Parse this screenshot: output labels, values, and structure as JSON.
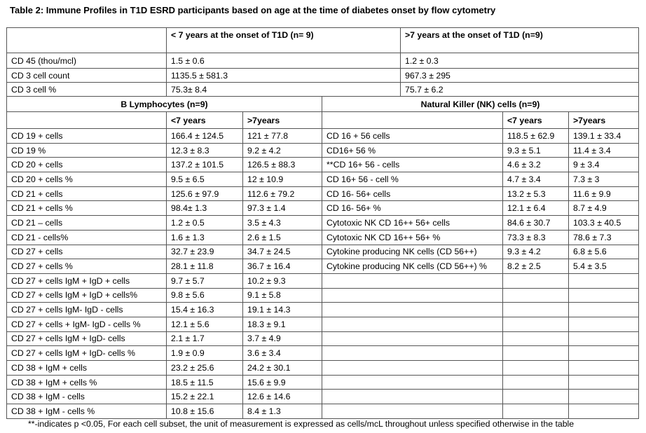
{
  "title": "Table 2: Immune Profiles in T1D ESRD participants based on age at the time of diabetes onset by flow cytometry",
  "overall": {
    "columns": [
      "< 7 years at the onset of T1D (n= 9)",
      ">7 years at the onset of T1D (n=9)"
    ],
    "rows": [
      [
        "CD 45 (thou/mcl)",
        "1.5 ± 0.6",
        "1.2 ± 0.3"
      ],
      [
        "CD 3 cell count",
        "1135.5 ± 581.3",
        "967.3 ± 295"
      ],
      [
        "CD 3 cell %",
        "75.3± 8.4",
        "75.7 ± 6.2"
      ]
    ]
  },
  "b_lymphocytes": {
    "title": "B Lymphocytes (n=9)",
    "columns": [
      "<7 years",
      ">7years"
    ],
    "rows": [
      [
        "CD 19 + cells",
        "166.4 ± 124.5",
        "121 ± 77.8"
      ],
      [
        "CD 19 %",
        "12.3 ± 8.3",
        "9.2 ± 4.2"
      ],
      [
        "CD 20 + cells",
        "137.2 ± 101.5",
        "126.5 ± 88.3"
      ],
      [
        "CD 20 + cells %",
        "9.5 ± 6.5",
        "12 ± 10.9"
      ],
      [
        "CD 21 + cells",
        "125.6 ± 97.9",
        "112.6 ± 79.2"
      ],
      [
        "CD 21 + cells %",
        "98.4± 1.3",
        "97.3 ± 1.4"
      ],
      [
        "CD 21 – cells",
        "1.2 ± 0.5",
        "3.5 ± 4.3"
      ],
      [
        "CD 21 - cells%",
        "1.6 ± 1.3",
        "2.6 ± 1.5"
      ],
      [
        "CD 27 + cells",
        "32.7 ± 23.9",
        "34.7 ± 24.5"
      ],
      [
        "CD 27 + cells %",
        "28.1 ± 11.8",
        "36.7 ± 16.4"
      ],
      [
        "CD 27 + cells IgM + IgD + cells",
        "9.7 ± 5.7",
        "10.2 ± 9.3"
      ],
      [
        "CD 27 + cells IgM + IgD + cells%",
        "9.8 ± 5.6",
        "9.1 ± 5.8"
      ],
      [
        "CD 27 + cells IgM- IgD - cells",
        "15.4 ± 16.3",
        "19.1 ± 14.3"
      ],
      [
        "CD 27 + cells + IgM- IgD - cells %",
        "12.1 ± 5.6",
        "18.3 ± 9.1"
      ],
      [
        "CD 27 + cells IgM + IgD- cells",
        "2.1 ± 1.7",
        "3.7 ± 4.9"
      ],
      [
        "CD 27 + cells IgM + IgD- cells %",
        "1.9 ± 0.9",
        "3.6 ± 3.4"
      ],
      [
        "CD 38 + IgM + cells",
        "23.2 ± 25.6",
        "24.2 ± 30.1"
      ],
      [
        "CD 38 + IgM + cells %",
        "18.5 ± 11.5",
        "15.6 ± 9.9"
      ],
      [
        "CD 38 + IgM - cells",
        "15.2 ± 22.1",
        "12.6 ± 14.6"
      ],
      [
        "CD 38 + IgM - cells %",
        "10.8 ± 15.6",
        "8.4 ± 1.3"
      ]
    ]
  },
  "nk_cells": {
    "title": "Natural Killer (NK) cells (n=9)",
    "columns": [
      "<7 years",
      ">7years"
    ],
    "rows": [
      [
        "CD 16 + 56 cells",
        "118.5 ± 62.9",
        "139.1 ± 33.4"
      ],
      [
        "CD16+ 56 %",
        "9.3 ± 5.1",
        "11.4 ± 3.4"
      ],
      [
        "**CD 16+ 56 - cells",
        "4.6 ± 3.2",
        "9 ± 3.4"
      ],
      [
        "CD 16+ 56 - cell %",
        "4.7 ± 3.4",
        "7.3 ± 3"
      ],
      [
        "CD 16- 56+ cells",
        "13.2 ± 5.3",
        "11.6 ± 9.9"
      ],
      [
        "CD 16- 56+ %",
        "12.1 ± 6.4",
        "8.7 ± 4.9"
      ],
      [
        "Cytotoxic NK CD 16++ 56+ cells",
        "84.6 ± 30.7",
        "103.3 ± 40.5"
      ],
      [
        "Cytotoxic NK CD 16++ 56+ %",
        "73.3 ± 8.3",
        "78.6 ± 7.3"
      ],
      [
        "Cytokine producing NK cells (CD 56++)",
        "9.3 ± 4.2",
        "6.8 ± 5.6"
      ],
      [
        "Cytokine producing NK cells (CD 56++) %",
        "8.2 ± 2.5",
        "5.4 ± 3.5"
      ]
    ]
  },
  "footnote": "**-indicates p <0.05, For each cell subset, the unit of measurement is expressed as cells/mcL throughout unless specified otherwise in the table"
}
